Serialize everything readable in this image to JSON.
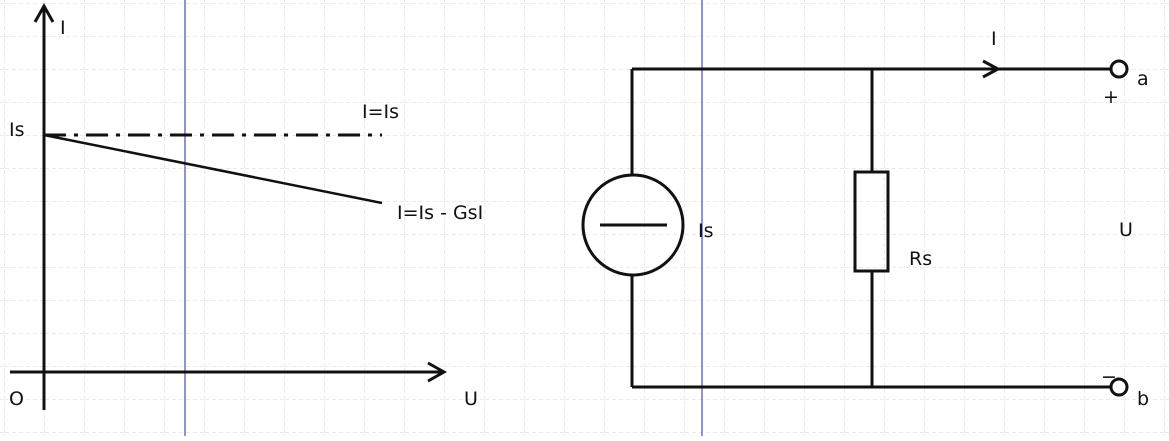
{
  "colors": {
    "background": "#ffffff",
    "grid": "#cfd3d8",
    "guide": "#2a2a9a",
    "ink": "#111111"
  },
  "graph": {
    "y_axis_label": "I",
    "x_axis_label": "U",
    "origin_label": "O",
    "is_label": "Is",
    "ideal_line_label": "I=Is",
    "real_line_label": "I=Is - GsI"
  },
  "circuit": {
    "current_label": "I",
    "source_label": "Is",
    "resistor_label": "Rs",
    "voltage_label": "U",
    "terminal_a": "a",
    "terminal_b": "b",
    "plus_sign": "+",
    "minus_sign": "−"
  }
}
